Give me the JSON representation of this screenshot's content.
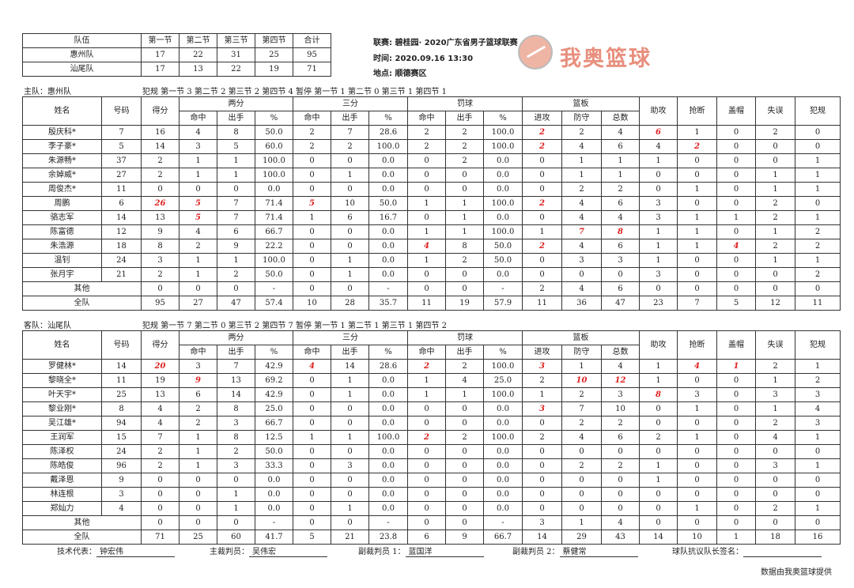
{
  "scoreboard": {
    "headers": [
      "队伍",
      "第一节",
      "第二节",
      "第三节",
      "第四节",
      "合计"
    ],
    "rows": [
      [
        "惠州队",
        "17",
        "22",
        "31",
        "25",
        "95"
      ],
      [
        "汕尾队",
        "17",
        "13",
        "22",
        "19",
        "71"
      ]
    ]
  },
  "match_info": {
    "league": "联赛: 碧桂园· 2020广东省男子篮球联赛",
    "time": "时间: 2020.09.16 13:30",
    "venue": "地点: 顺德赛区"
  },
  "logo": {
    "text": "我奥篮球",
    "color": "#e88f7d"
  },
  "highlight_color": "#dd2222",
  "stat_headers": {
    "name": "姓名",
    "number": "号码",
    "points": "得分",
    "two": "两分",
    "three": "三分",
    "ft": "罚球",
    "reb": "篮板",
    "made": "命中",
    "att": "出手",
    "pct": "%",
    "off": "进攻",
    "def": "防守",
    "total": "总数",
    "ast": "助攻",
    "stl": "抢断",
    "blk": "盖帽",
    "tov": "失误",
    "pf": "犯规"
  },
  "home": {
    "label": "主队：惠州队",
    "fouls": "犯规 第一节 3 第二节 2 第三节 2 第四节 4 暂停 第一节 1 第二节 0 第三节 1 第四节 1",
    "players": [
      {
        "name": "殷庆科*",
        "no": "7",
        "stats": [
          "16",
          "4",
          "8",
          "50.0",
          "2",
          "7",
          "28.6",
          "2",
          "2",
          "100.0",
          "2",
          "2",
          "4",
          "6",
          "1",
          "0",
          "2",
          "0"
        ],
        "hl": [
          10,
          13
        ]
      },
      {
        "name": "李子豪*",
        "no": "5",
        "stats": [
          "14",
          "3",
          "5",
          "60.0",
          "2",
          "2",
          "100.0",
          "2",
          "2",
          "100.0",
          "2",
          "4",
          "6",
          "4",
          "2",
          "0",
          "0",
          "0"
        ],
        "hl": [
          10,
          14
        ]
      },
      {
        "name": "朱源畅*",
        "no": "37",
        "stats": [
          "2",
          "1",
          "1",
          "100.0",
          "0",
          "0",
          "0.0",
          "0",
          "2",
          "0.0",
          "0",
          "1",
          "1",
          "1",
          "0",
          "0",
          "0",
          "1"
        ],
        "hl": []
      },
      {
        "name": "余婥威*",
        "no": "27",
        "stats": [
          "2",
          "1",
          "1",
          "100.0",
          "0",
          "1",
          "0.0",
          "0",
          "0",
          "0.0",
          "0",
          "1",
          "1",
          "0",
          "0",
          "0",
          "1",
          "1"
        ],
        "hl": []
      },
      {
        "name": "周俊杰*",
        "no": "11",
        "stats": [
          "0",
          "0",
          "0",
          "0.0",
          "0",
          "0",
          "0.0",
          "0",
          "0",
          "0.0",
          "0",
          "2",
          "2",
          "0",
          "1",
          "0",
          "1",
          "1"
        ],
        "hl": []
      },
      {
        "name": "周鹏",
        "no": "6",
        "stats": [
          "26",
          "5",
          "7",
          "71.4",
          "5",
          "10",
          "50.0",
          "1",
          "1",
          "100.0",
          "2",
          "4",
          "6",
          "3",
          "0",
          "0",
          "2",
          "0"
        ],
        "hl": [
          0,
          1,
          4,
          10
        ]
      },
      {
        "name": "骆志军",
        "no": "14",
        "stats": [
          "13",
          "5",
          "7",
          "71.4",
          "1",
          "6",
          "16.7",
          "0",
          "1",
          "0.0",
          "0",
          "4",
          "4",
          "3",
          "1",
          "1",
          "2",
          "1"
        ],
        "hl": [
          1
        ]
      },
      {
        "name": "陈富德",
        "no": "12",
        "stats": [
          "9",
          "4",
          "6",
          "66.7",
          "0",
          "0",
          "0.0",
          "1",
          "1",
          "100.0",
          "1",
          "7",
          "8",
          "1",
          "1",
          "0",
          "1",
          "2"
        ],
        "hl": [
          11,
          12
        ]
      },
      {
        "name": "朱浩源",
        "no": "18",
        "stats": [
          "8",
          "2",
          "9",
          "22.2",
          "0",
          "0",
          "0.0",
          "4",
          "8",
          "50.0",
          "2",
          "4",
          "6",
          "1",
          "1",
          "4",
          "2",
          "2"
        ],
        "hl": [
          7,
          10,
          15
        ]
      },
      {
        "name": "温钊",
        "no": "24",
        "stats": [
          "3",
          "1",
          "1",
          "100.0",
          "0",
          "1",
          "0.0",
          "1",
          "2",
          "50.0",
          "0",
          "3",
          "3",
          "1",
          "0",
          "0",
          "1",
          "1"
        ],
        "hl": []
      },
      {
        "name": "张月宇",
        "no": "21",
        "stats": [
          "2",
          "1",
          "2",
          "50.0",
          "0",
          "1",
          "0.0",
          "0",
          "0",
          "0.0",
          "0",
          "0",
          "0",
          "3",
          "0",
          "0",
          "0",
          "2"
        ],
        "hl": []
      }
    ],
    "others": {
      "name": "其他",
      "stats": [
        "0",
        "0",
        "0",
        "-",
        "0",
        "0",
        "-",
        "0",
        "0",
        "-",
        "2",
        "4",
        "6",
        "0",
        "0",
        "0",
        "0",
        "0"
      ]
    },
    "team": {
      "name": "全队",
      "stats": [
        "95",
        "27",
        "47",
        "57.4",
        "10",
        "28",
        "35.7",
        "11",
        "19",
        "57.9",
        "11",
        "36",
        "47",
        "23",
        "7",
        "5",
        "12",
        "11"
      ]
    }
  },
  "away": {
    "label": "客队：汕尾队",
    "fouls": "犯规 第一节 7 第二节 0 第三节 2 第四节 7 暂停 第一节 1 第二节 1 第三节 1 第四节 2",
    "players": [
      {
        "name": "罗健林*",
        "no": "14",
        "stats": [
          "20",
          "3",
          "7",
          "42.9",
          "4",
          "14",
          "28.6",
          "2",
          "2",
          "100.0",
          "3",
          "1",
          "4",
          "1",
          "4",
          "1",
          "2",
          "1"
        ],
        "hl": [
          0,
          4,
          7,
          10,
          14,
          15
        ]
      },
      {
        "name": "黎晓全*",
        "no": "11",
        "stats": [
          "19",
          "9",
          "13",
          "69.2",
          "0",
          "1",
          "0.0",
          "1",
          "4",
          "25.0",
          "2",
          "10",
          "12",
          "1",
          "0",
          "0",
          "1",
          "2"
        ],
        "hl": [
          1,
          11,
          12
        ]
      },
      {
        "name": "叶天宇*",
        "no": "25",
        "stats": [
          "13",
          "6",
          "14",
          "42.9",
          "0",
          "1",
          "0.0",
          "1",
          "1",
          "100.0",
          "1",
          "2",
          "3",
          "8",
          "3",
          "0",
          "3",
          "3"
        ],
        "hl": [
          13
        ]
      },
      {
        "name": "黎业刚*",
        "no": "8",
        "stats": [
          "4",
          "2",
          "8",
          "25.0",
          "0",
          "0",
          "0.0",
          "0",
          "0",
          "0.0",
          "3",
          "7",
          "10",
          "0",
          "1",
          "0",
          "1",
          "4"
        ],
        "hl": [
          10
        ]
      },
      {
        "name": "吴江雄*",
        "no": "94",
        "stats": [
          "4",
          "2",
          "3",
          "66.7",
          "0",
          "0",
          "0.0",
          "0",
          "0",
          "0.0",
          "0",
          "2",
          "2",
          "0",
          "0",
          "0",
          "2",
          "3"
        ],
        "hl": []
      },
      {
        "name": "王润军",
        "no": "15",
        "stats": [
          "7",
          "1",
          "8",
          "12.5",
          "1",
          "1",
          "100.0",
          "2",
          "2",
          "100.0",
          "2",
          "4",
          "6",
          "2",
          "1",
          "0",
          "4",
          "1"
        ],
        "hl": [
          7
        ]
      },
      {
        "name": "陈泽权",
        "no": "24",
        "stats": [
          "2",
          "1",
          "2",
          "50.0",
          "0",
          "0",
          "0.0",
          "0",
          "0",
          "0.0",
          "0",
          "0",
          "0",
          "0",
          "0",
          "0",
          "0",
          "0"
        ],
        "hl": []
      },
      {
        "name": "陈皓俊",
        "no": "96",
        "stats": [
          "2",
          "1",
          "3",
          "33.3",
          "0",
          "3",
          "0.0",
          "0",
          "0",
          "0.0",
          "0",
          "2",
          "2",
          "1",
          "0",
          "0",
          "3",
          "1"
        ],
        "hl": []
      },
      {
        "name": "戴泽恩",
        "no": "9",
        "stats": [
          "0",
          "0",
          "0",
          "0.0",
          "0",
          "0",
          "0.0",
          "0",
          "0",
          "0.0",
          "0",
          "0",
          "0",
          "1",
          "0",
          "0",
          "0",
          "0"
        ],
        "hl": []
      },
      {
        "name": "林连根",
        "no": "3",
        "stats": [
          "0",
          "0",
          "1",
          "0.0",
          "0",
          "0",
          "0.0",
          "0",
          "0",
          "0.0",
          "0",
          "0",
          "0",
          "0",
          "0",
          "0",
          "0",
          "0"
        ],
        "hl": []
      },
      {
        "name": "郑灿力",
        "no": "4",
        "stats": [
          "0",
          "0",
          "1",
          "0.0",
          "0",
          "1",
          "0.0",
          "0",
          "0",
          "0.0",
          "0",
          "0",
          "0",
          "0",
          "1",
          "0",
          "2",
          "1"
        ],
        "hl": []
      }
    ],
    "others": {
      "name": "其他",
      "stats": [
        "0",
        "0",
        "0",
        "-",
        "0",
        "0",
        "-",
        "0",
        "0",
        "-",
        "3",
        "1",
        "4",
        "0",
        "0",
        "0",
        "0",
        "0"
      ]
    },
    "team": {
      "name": "全队",
      "stats": [
        "71",
        "25",
        "60",
        "41.7",
        "5",
        "21",
        "23.8",
        "6",
        "9",
        "66.7",
        "14",
        "29",
        "43",
        "14",
        "10",
        "1",
        "18",
        "16"
      ]
    }
  },
  "footer": {
    "tech_rep_label": "技术代表：",
    "tech_rep": "钟宏伟",
    "referee_label": "主裁判员：",
    "referee": "吴伟宏",
    "ump1_label": "副裁判员 1：",
    "ump1": "蓝国洋",
    "ump2_label": "副裁判员 2：",
    "ump2": "蔡健常",
    "captain_label": "球队抗议队长签名：",
    "captain": "",
    "credit": "数据由我奥篮球提供"
  }
}
